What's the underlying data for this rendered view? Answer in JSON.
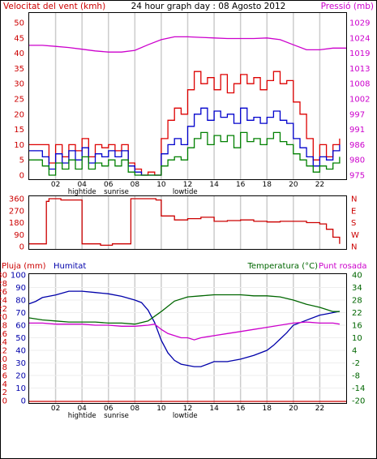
{
  "header": {
    "wind_title": "Velocitat del vent (kmh)",
    "graph_title": "24 hour graph day : 08 Agosto 2012",
    "pressure_title": "Pressió (mb)"
  },
  "lower_header": {
    "rain_title": "Pluja (mm)",
    "humidity_title": "Humitat",
    "temp_title": "Temperatura (°C)",
    "dew_title": "Punt rosada"
  },
  "colors": {
    "wind_avg": "#0000cc",
    "wind_gust": "#dd0000",
    "wind_low": "#008000",
    "pressure": "#cc00cc",
    "direction": "#cc0000",
    "humidity": "#0000aa",
    "temperature": "#006600",
    "dewpoint": "#cc00cc",
    "rain": "#cc0000",
    "grid": "#cccccc"
  },
  "x_axis": {
    "hour_ticks": [
      "02",
      "04",
      "06",
      "08",
      "10",
      "12",
      "14",
      "16",
      "18",
      "20",
      "22"
    ],
    "markers": [
      {
        "label": "hightide",
        "hour": 4
      },
      {
        "label": "sunrise",
        "hour": 6.6
      },
      {
        "label": "lowtide",
        "hour": 11.8
      }
    ]
  },
  "chart_data": [
    {
      "type": "line",
      "title": "Velocitat del vent (kmh)",
      "x_range": [
        0,
        24
      ],
      "ylabel": "Velocitat del vent (kmh)",
      "y_ticks": [
        "0",
        "5",
        "10",
        "15",
        "20",
        "25",
        "30",
        "35",
        "40",
        "45",
        "50"
      ],
      "ylim": [
        0,
        50
      ],
      "y2label": "Pressió (mb)",
      "y2_ticks": [
        "975",
        "980",
        "986",
        "991",
        "997",
        "1002",
        "1008",
        "1013",
        "1019",
        "1024",
        "1029"
      ],
      "y2lim": [
        975,
        1029
      ],
      "series": [
        {
          "key": "gust",
          "axis": "left",
          "x": [
            0,
            1,
            1.5,
            2,
            2.5,
            3,
            3.5,
            4,
            4.5,
            5,
            5.5,
            6,
            6.5,
            7,
            7.5,
            8,
            8.5,
            9,
            9.5,
            10,
            10.5,
            11,
            11.5,
            12,
            12.5,
            13,
            13.5,
            14,
            14.5,
            15,
            15.5,
            16,
            16.5,
            17,
            17.5,
            18,
            18.5,
            19,
            19.5,
            20,
            20.5,
            21,
            21.5,
            22,
            22.5,
            23,
            23.5
          ],
          "values": [
            10,
            10,
            4,
            10,
            6,
            10,
            8,
            12,
            6,
            10,
            9,
            10,
            8,
            10,
            4,
            2,
            0,
            1,
            0,
            12,
            18,
            22,
            20,
            28,
            34,
            30,
            32,
            28,
            33,
            27,
            30,
            33,
            30,
            32,
            28,
            31,
            34,
            30,
            31,
            24,
            20,
            12,
            5,
            10,
            6,
            10,
            12
          ]
        },
        {
          "key": "average",
          "axis": "left",
          "x": [
            0,
            1,
            1.5,
            2,
            2.5,
            3,
            3.5,
            4,
            4.5,
            5,
            5.5,
            6,
            6.5,
            7,
            7.5,
            8,
            8.5,
            9,
            9.5,
            10,
            10.5,
            11,
            11.5,
            12,
            12.5,
            13,
            13.5,
            14,
            14.5,
            15,
            15.5,
            16,
            16.5,
            17,
            17.5,
            18,
            18.5,
            19,
            19.5,
            20,
            20.5,
            21,
            21.5,
            22,
            22.5,
            23,
            23.5
          ],
          "values": [
            8,
            6,
            2,
            7,
            4,
            8,
            5,
            9,
            4,
            7,
            6,
            8,
            6,
            8,
            3,
            1,
            0,
            0,
            0,
            7,
            10,
            12,
            10,
            16,
            20,
            22,
            18,
            21,
            19,
            20,
            17,
            22,
            18,
            19,
            17,
            19,
            21,
            18,
            17,
            12,
            9,
            6,
            3,
            6,
            5,
            8,
            10
          ]
        },
        {
          "key": "low",
          "axis": "left",
          "x": [
            0,
            1,
            1.5,
            2,
            2.5,
            3,
            3.5,
            4,
            4.5,
            5,
            5.5,
            6,
            6.5,
            7,
            7.5,
            8,
            8.5,
            9,
            9.5,
            10,
            10.5,
            11,
            11.5,
            12,
            12.5,
            13,
            13.5,
            14,
            14.5,
            15,
            15.5,
            16,
            16.5,
            17,
            17.5,
            18,
            18.5,
            19,
            19.5,
            20,
            20.5,
            21,
            21.5,
            22,
            22.5,
            23,
            23.5
          ],
          "values": [
            5,
            3,
            0,
            4,
            2,
            5,
            2,
            6,
            2,
            4,
            3,
            5,
            3,
            5,
            1,
            0,
            0,
            0,
            0,
            3,
            5,
            6,
            5,
            9,
            12,
            14,
            10,
            13,
            11,
            13,
            9,
            14,
            11,
            12,
            10,
            12,
            14,
            11,
            10,
            7,
            5,
            3,
            1,
            3,
            2,
            4,
            6
          ]
        },
        {
          "key": "pressure",
          "axis": "right",
          "x": [
            0,
            1,
            2,
            3,
            4,
            5,
            6,
            7,
            8,
            9,
            10,
            11,
            12,
            13,
            14,
            15,
            16,
            17,
            18,
            19,
            20,
            21,
            22,
            23,
            24
          ],
          "values": [
            1021,
            1021,
            1020.6,
            1020.2,
            1019.6,
            1019,
            1018.6,
            1018.6,
            1019.2,
            1021.2,
            1023,
            1024,
            1024,
            1023.8,
            1023.6,
            1023.4,
            1023.4,
            1023.4,
            1023.6,
            1023,
            1021.2,
            1019.4,
            1019.4,
            1020,
            1020
          ]
        }
      ]
    },
    {
      "type": "line",
      "title": "",
      "x_range": [
        0,
        24
      ],
      "y_ticks": [
        "0",
        "90",
        "180",
        "270",
        "360"
      ],
      "ylim": [
        0,
        360
      ],
      "y2_ticks": [
        "N",
        "W",
        "S",
        "E",
        "N"
      ],
      "series": [
        {
          "key": "direction",
          "x": [
            0,
            0.3,
            1.3,
            1.5,
            2.2,
            2.4,
            3.8,
            4,
            5.2,
            5.4,
            6,
            6.3,
            7.5,
            7.7,
            8.8,
            9.6,
            10,
            11,
            12,
            13,
            14,
            15,
            16,
            17,
            18,
            19,
            20,
            21,
            22,
            22.5,
            23,
            23.5
          ],
          "values": [
            20,
            20,
            340,
            360,
            360,
            350,
            350,
            20,
            20,
            10,
            10,
            20,
            20,
            360,
            360,
            350,
            230,
            200,
            210,
            220,
            190,
            195,
            200,
            190,
            185,
            190,
            190,
            180,
            170,
            130,
            70,
            20
          ]
        }
      ]
    },
    {
      "type": "line",
      "title": "",
      "x_range": [
        0,
        24
      ],
      "y_left_outer_label": "Pluja (mm)",
      "y_left_outer_ticks": [
        "0",
        "2",
        "4",
        "6",
        "8",
        "10",
        "12",
        "14",
        "16",
        "18",
        "20",
        "22",
        "24",
        "26",
        "28",
        "30"
      ],
      "y_left_inner_label": "Humitat",
      "y_left_inner_ticks": [
        "0",
        "10",
        "20",
        "30",
        "40",
        "50",
        "60",
        "70",
        "80",
        "90",
        "100"
      ],
      "humidity_ylim": [
        0,
        100
      ],
      "y2label": "Temperatura (°C)",
      "y2_ticks": [
        "-20",
        "-14",
        "-8",
        "-2",
        "4",
        "10",
        "16",
        "22",
        "28",
        "34",
        "40"
      ],
      "y2lim": [
        -20,
        40
      ],
      "series": [
        {
          "key": "humidity",
          "axis": "humidity",
          "x": [
            0,
            0.5,
            1,
            2,
            3,
            4,
            5,
            6,
            7,
            8,
            8.5,
            9,
            9.5,
            10,
            10.5,
            11,
            11.5,
            12,
            12.5,
            13,
            13.5,
            14,
            15,
            16,
            17,
            18,
            18.5,
            19,
            19.5,
            20,
            21,
            22,
            22.5,
            23,
            23.5
          ],
          "values": [
            77,
            79,
            82,
            84,
            87,
            87,
            86,
            85,
            83,
            80,
            78,
            72,
            62,
            48,
            38,
            32,
            29,
            28,
            27,
            27,
            29,
            31,
            31,
            33,
            36,
            40,
            44,
            49,
            54,
            60,
            64,
            68,
            69,
            70,
            71
          ]
        },
        {
          "key": "temperature",
          "axis": "right",
          "x": [
            0,
            1,
            2,
            3,
            4,
            5,
            6,
            7,
            8,
            9,
            10,
            11,
            12,
            13,
            14,
            15,
            16,
            17,
            18,
            19,
            20,
            21,
            22,
            23,
            23.5
          ],
          "values": [
            19.5,
            18.5,
            18,
            17.5,
            17.5,
            17.5,
            17,
            17,
            16.5,
            18,
            22.5,
            27.5,
            29.5,
            30,
            30.5,
            30.5,
            30.5,
            30,
            30,
            29.5,
            28,
            26,
            24.5,
            22.5,
            22.5
          ]
        },
        {
          "key": "dewpoint",
          "axis": "right",
          "x": [
            0,
            1,
            2,
            3,
            4,
            5,
            6,
            7,
            8,
            9,
            9.5,
            10,
            10.5,
            11,
            11.5,
            12,
            12.5,
            13,
            13.5,
            14,
            15,
            16,
            17,
            18,
            19,
            20,
            21,
            22,
            23,
            23.5
          ],
          "values": [
            17,
            17,
            16.5,
            16.5,
            16.5,
            16,
            16,
            15.5,
            15.5,
            16,
            16.5,
            14,
            12,
            11,
            10,
            10,
            9,
            10,
            10.5,
            11,
            12,
            13,
            14,
            15,
            16,
            17,
            17.5,
            17,
            17,
            16.5
          ]
        },
        {
          "key": "rain",
          "axis": "rain",
          "x": [
            0,
            24
          ],
          "values": [
            0,
            0
          ]
        }
      ]
    }
  ]
}
